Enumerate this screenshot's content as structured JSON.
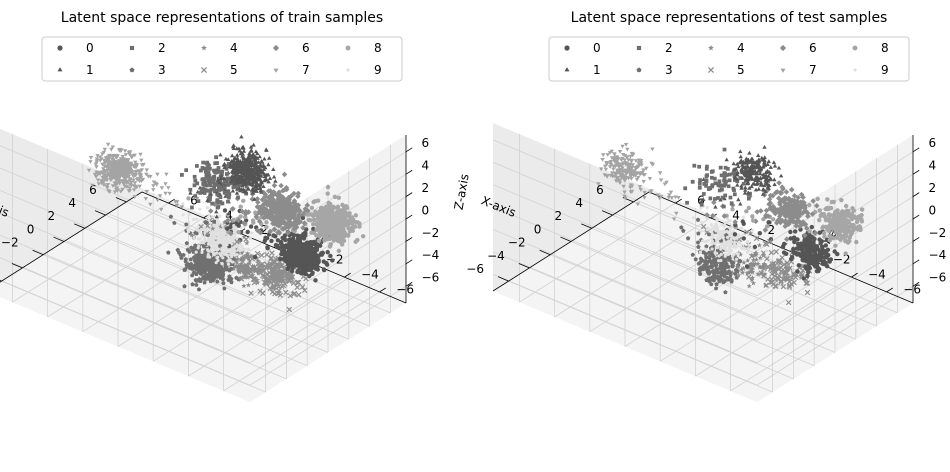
{
  "colors": {
    "background": "#ffffff",
    "pane_side": "#ebebeb",
    "pane_back": "#f2f2f2",
    "pane_floor": "#f4f4f4",
    "grid": "#d2d2d2"
  },
  "chart_data": [
    {
      "type": "scatter",
      "projection": "3d",
      "title": "Latent space representations of train samples",
      "xlabel": "X-axis",
      "ylabel": "Y-axis",
      "zlabel": "Z-axis",
      "xlim": [
        -7.5,
        7.5
      ],
      "ylim": [
        -7.5,
        7.5
      ],
      "zlim": [
        -7.5,
        7.5
      ],
      "xticks": [
        6,
        4,
        2,
        0,
        -2,
        -4,
        -6
      ],
      "yticks": [
        -6,
        -4,
        -2,
        0,
        2,
        4,
        6
      ],
      "zticks": [
        6,
        4,
        2,
        0,
        -2,
        -4,
        -6
      ],
      "grid": true,
      "legend": {
        "placement": "top",
        "columns": 5
      },
      "series": [
        {
          "name": "0",
          "marker": "circle",
          "color": "#555555",
          "center": [
            0.5,
            -5.8,
            0
          ],
          "spread": 0.9,
          "n": 450
        },
        {
          "name": "1",
          "marker": "triangle",
          "color": "#555555",
          "center": [
            5.8,
            0.5,
            0
          ],
          "spread": 0.9,
          "n": 450
        },
        {
          "name": "2",
          "marker": "square",
          "color": "#6e6e6e",
          "center": [
            3.7,
            1.0,
            0
          ],
          "spread": 1.2,
          "n": 150
        },
        {
          "name": "3",
          "marker": "pentagon",
          "color": "#707070",
          "center": [
            -4.3,
            -3.3,
            0
          ],
          "spread": 1.0,
          "n": 420
        },
        {
          "name": "4",
          "marker": "star",
          "color": "#8a8a8a",
          "center": [
            -3.0,
            -4.5,
            0
          ],
          "spread": 0.8,
          "n": 120
        },
        {
          "name": "5",
          "marker": "x",
          "color": "#8e8e8e",
          "center": [
            -2.5,
            -6.0,
            0
          ],
          "spread": 1.1,
          "n": 200
        },
        {
          "name": "6",
          "marker": "diamond",
          "color": "#8c8c8c",
          "center": [
            3.5,
            -2.8,
            0
          ],
          "spread": 0.9,
          "n": 400
        },
        {
          "name": "7",
          "marker": "triangle-down",
          "color": "#a4a4a4",
          "center": [
            1.0,
            5.0,
            0
          ],
          "spread": 0.9,
          "n": 450
        },
        {
          "name": "8",
          "marker": "octagon",
          "color": "#a6a6a6",
          "center": [
            4.4,
            -5.2,
            0
          ],
          "spread": 0.9,
          "n": 450
        },
        {
          "name": "9",
          "marker": "point",
          "color": "#e0e0e0",
          "center": [
            -1.5,
            -2.2,
            0
          ],
          "spread": 0.9,
          "n": 450
        }
      ]
    },
    {
      "type": "scatter",
      "projection": "3d",
      "title": "Latent space representations of test samples",
      "xlabel": "X-axis",
      "ylabel": "Y-axis",
      "zlabel": "Z",
      "xlim": [
        -7.5,
        7.5
      ],
      "ylim": [
        -7.5,
        7.5
      ],
      "zlim": [
        -7.5,
        7.5
      ],
      "xticks": [
        6,
        4,
        2,
        0,
        -2,
        -4,
        -6
      ],
      "yticks": [
        -6,
        -4,
        -2,
        0,
        2,
        4,
        6
      ],
      "zticks": [
        6,
        4,
        2,
        0,
        -2,
        -4,
        -6
      ],
      "grid": true,
      "legend": {
        "placement": "top",
        "columns": 5
      },
      "series": [
        {
          "name": "0",
          "marker": "circle",
          "color": "#555555",
          "center": [
            0.5,
            -5.8,
            0
          ],
          "spread": 0.9,
          "n": 220
        },
        {
          "name": "1",
          "marker": "triangle",
          "color": "#555555",
          "center": [
            5.8,
            0.5,
            0
          ],
          "spread": 0.9,
          "n": 220
        },
        {
          "name": "2",
          "marker": "square",
          "color": "#6e6e6e",
          "center": [
            3.7,
            1.0,
            0
          ],
          "spread": 1.2,
          "n": 80
        },
        {
          "name": "3",
          "marker": "pentagon",
          "color": "#707070",
          "center": [
            -4.3,
            -3.3,
            0
          ],
          "spread": 1.0,
          "n": 210
        },
        {
          "name": "4",
          "marker": "star",
          "color": "#8a8a8a",
          "center": [
            -3.0,
            -4.5,
            0
          ],
          "spread": 0.8,
          "n": 60
        },
        {
          "name": "5",
          "marker": "x",
          "color": "#8e8e8e",
          "center": [
            -2.5,
            -6.0,
            0
          ],
          "spread": 1.1,
          "n": 110
        },
        {
          "name": "6",
          "marker": "diamond",
          "color": "#8c8c8c",
          "center": [
            3.5,
            -2.8,
            0
          ],
          "spread": 0.9,
          "n": 200
        },
        {
          "name": "7",
          "marker": "triangle-down",
          "color": "#a4a4a4",
          "center": [
            1.0,
            5.0,
            0
          ],
          "spread": 0.9,
          "n": 220
        },
        {
          "name": "8",
          "marker": "octagon",
          "color": "#a6a6a6",
          "center": [
            4.4,
            -5.2,
            0
          ],
          "spread": 0.9,
          "n": 220
        },
        {
          "name": "9",
          "marker": "point",
          "color": "#e0e0e0",
          "center": [
            -1.5,
            -2.2,
            0
          ],
          "spread": 0.9,
          "n": 220
        }
      ]
    }
  ]
}
